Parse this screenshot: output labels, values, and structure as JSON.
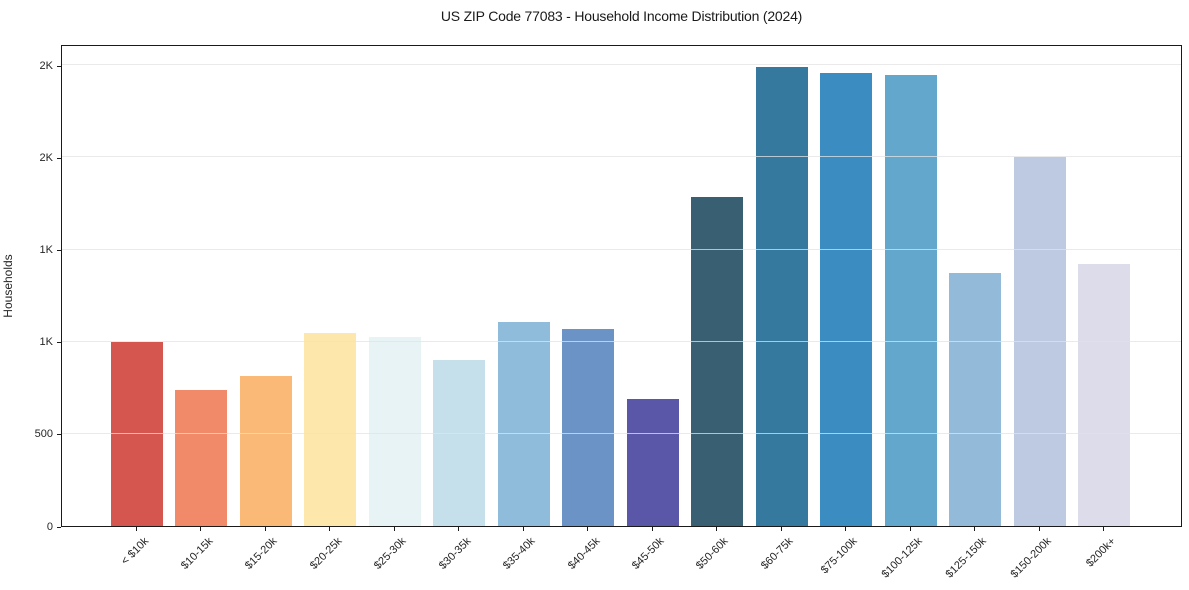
{
  "title": "US ZIP Code 77083 - Household Income Distribution (2024)",
  "chart_data": {
    "type": "bar",
    "title": "US ZIP Code 77083 - Household Income Distribution (2024)",
    "xlabel": "",
    "ylabel": "Households",
    "categories": [
      "< $10k",
      "$10-15k",
      "$15-20k",
      "$20-25k",
      "$25-30k",
      "$30-35k",
      "$35-40k",
      "$40-45k",
      "$45-50k",
      "$50-60k",
      "$60-75k",
      "$75-100k",
      "$100-125k",
      "$125-150k",
      "$150-200k",
      "$200k+"
    ],
    "values": [
      1000,
      740,
      815,
      1045,
      1025,
      900,
      1105,
      1070,
      690,
      1785,
      2490,
      2460,
      2445,
      1375,
      2000,
      1420
    ],
    "bar_colors": [
      "#d4564e",
      "#f08a68",
      "#fbb977",
      "#fde7ab",
      "#e7f3f4",
      "#c5e0ea",
      "#8fbcdb",
      "#6b93c5",
      "#5b57a8",
      "#395f73",
      "#36799f",
      "#3a8cc1",
      "#64a7cc",
      "#94bad9",
      "#bdcae1",
      "#dcdcea"
    ],
    "ylim": [
      0,
      2615
    ],
    "yticks": [
      {
        "value": 0,
        "label": "0"
      },
      {
        "value": 500,
        "label": "500"
      },
      {
        "value": 1000,
        "label": "1K"
      },
      {
        "value": 1500,
        "label": "1K"
      },
      {
        "value": 2000,
        "label": "2K"
      },
      {
        "value": 2500,
        "label": "2K"
      }
    ],
    "grid": "horizontal",
    "legend": "none",
    "background_color": "#ffffff",
    "axis_color": "#1a1a1a",
    "gridline_color": "#e3e3e3"
  }
}
